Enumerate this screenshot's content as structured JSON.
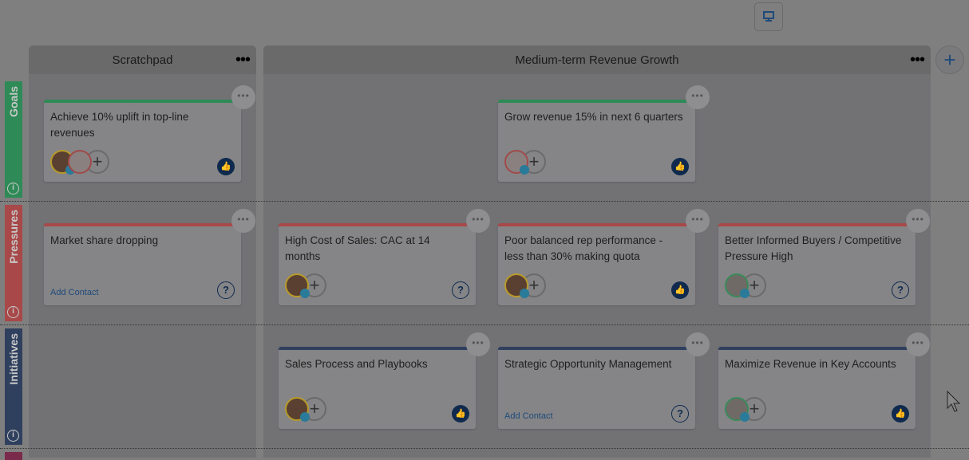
{
  "toolbar": {
    "present_icon": "monitor-icon"
  },
  "columns": [
    {
      "title": "Scratchpad"
    },
    {
      "title": "Medium-term Revenue Growth"
    }
  ],
  "column_menu": "•••",
  "add_column": "+",
  "lanes": [
    {
      "label": "Goals",
      "color": "#2e8a56"
    },
    {
      "label": "Pressures",
      "color": "#a84848"
    },
    {
      "label": "Initiatives",
      "color": "#2f3f5e"
    }
  ],
  "info": "i",
  "more": "•••",
  "add_contact": "Add Contact",
  "plus": "+",
  "like": "👍",
  "question": "?",
  "cards": {
    "g1": "Achieve 10% uplift in top-line revenues",
    "g2": "Grow revenue 15% in next 6 quarters",
    "p1": "Market share dropping",
    "p2": "High Cost of Sales: CAC at 14 months",
    "p3": "Poor balanced rep performance - less than 30% making quota",
    "p4": "Better Informed Buyers / Competitive Pressure High",
    "i1": "Sales Process and Playbooks",
    "i2": "Strategic Opportunity Management",
    "i3": "Maximize Revenue in Key Accounts"
  }
}
